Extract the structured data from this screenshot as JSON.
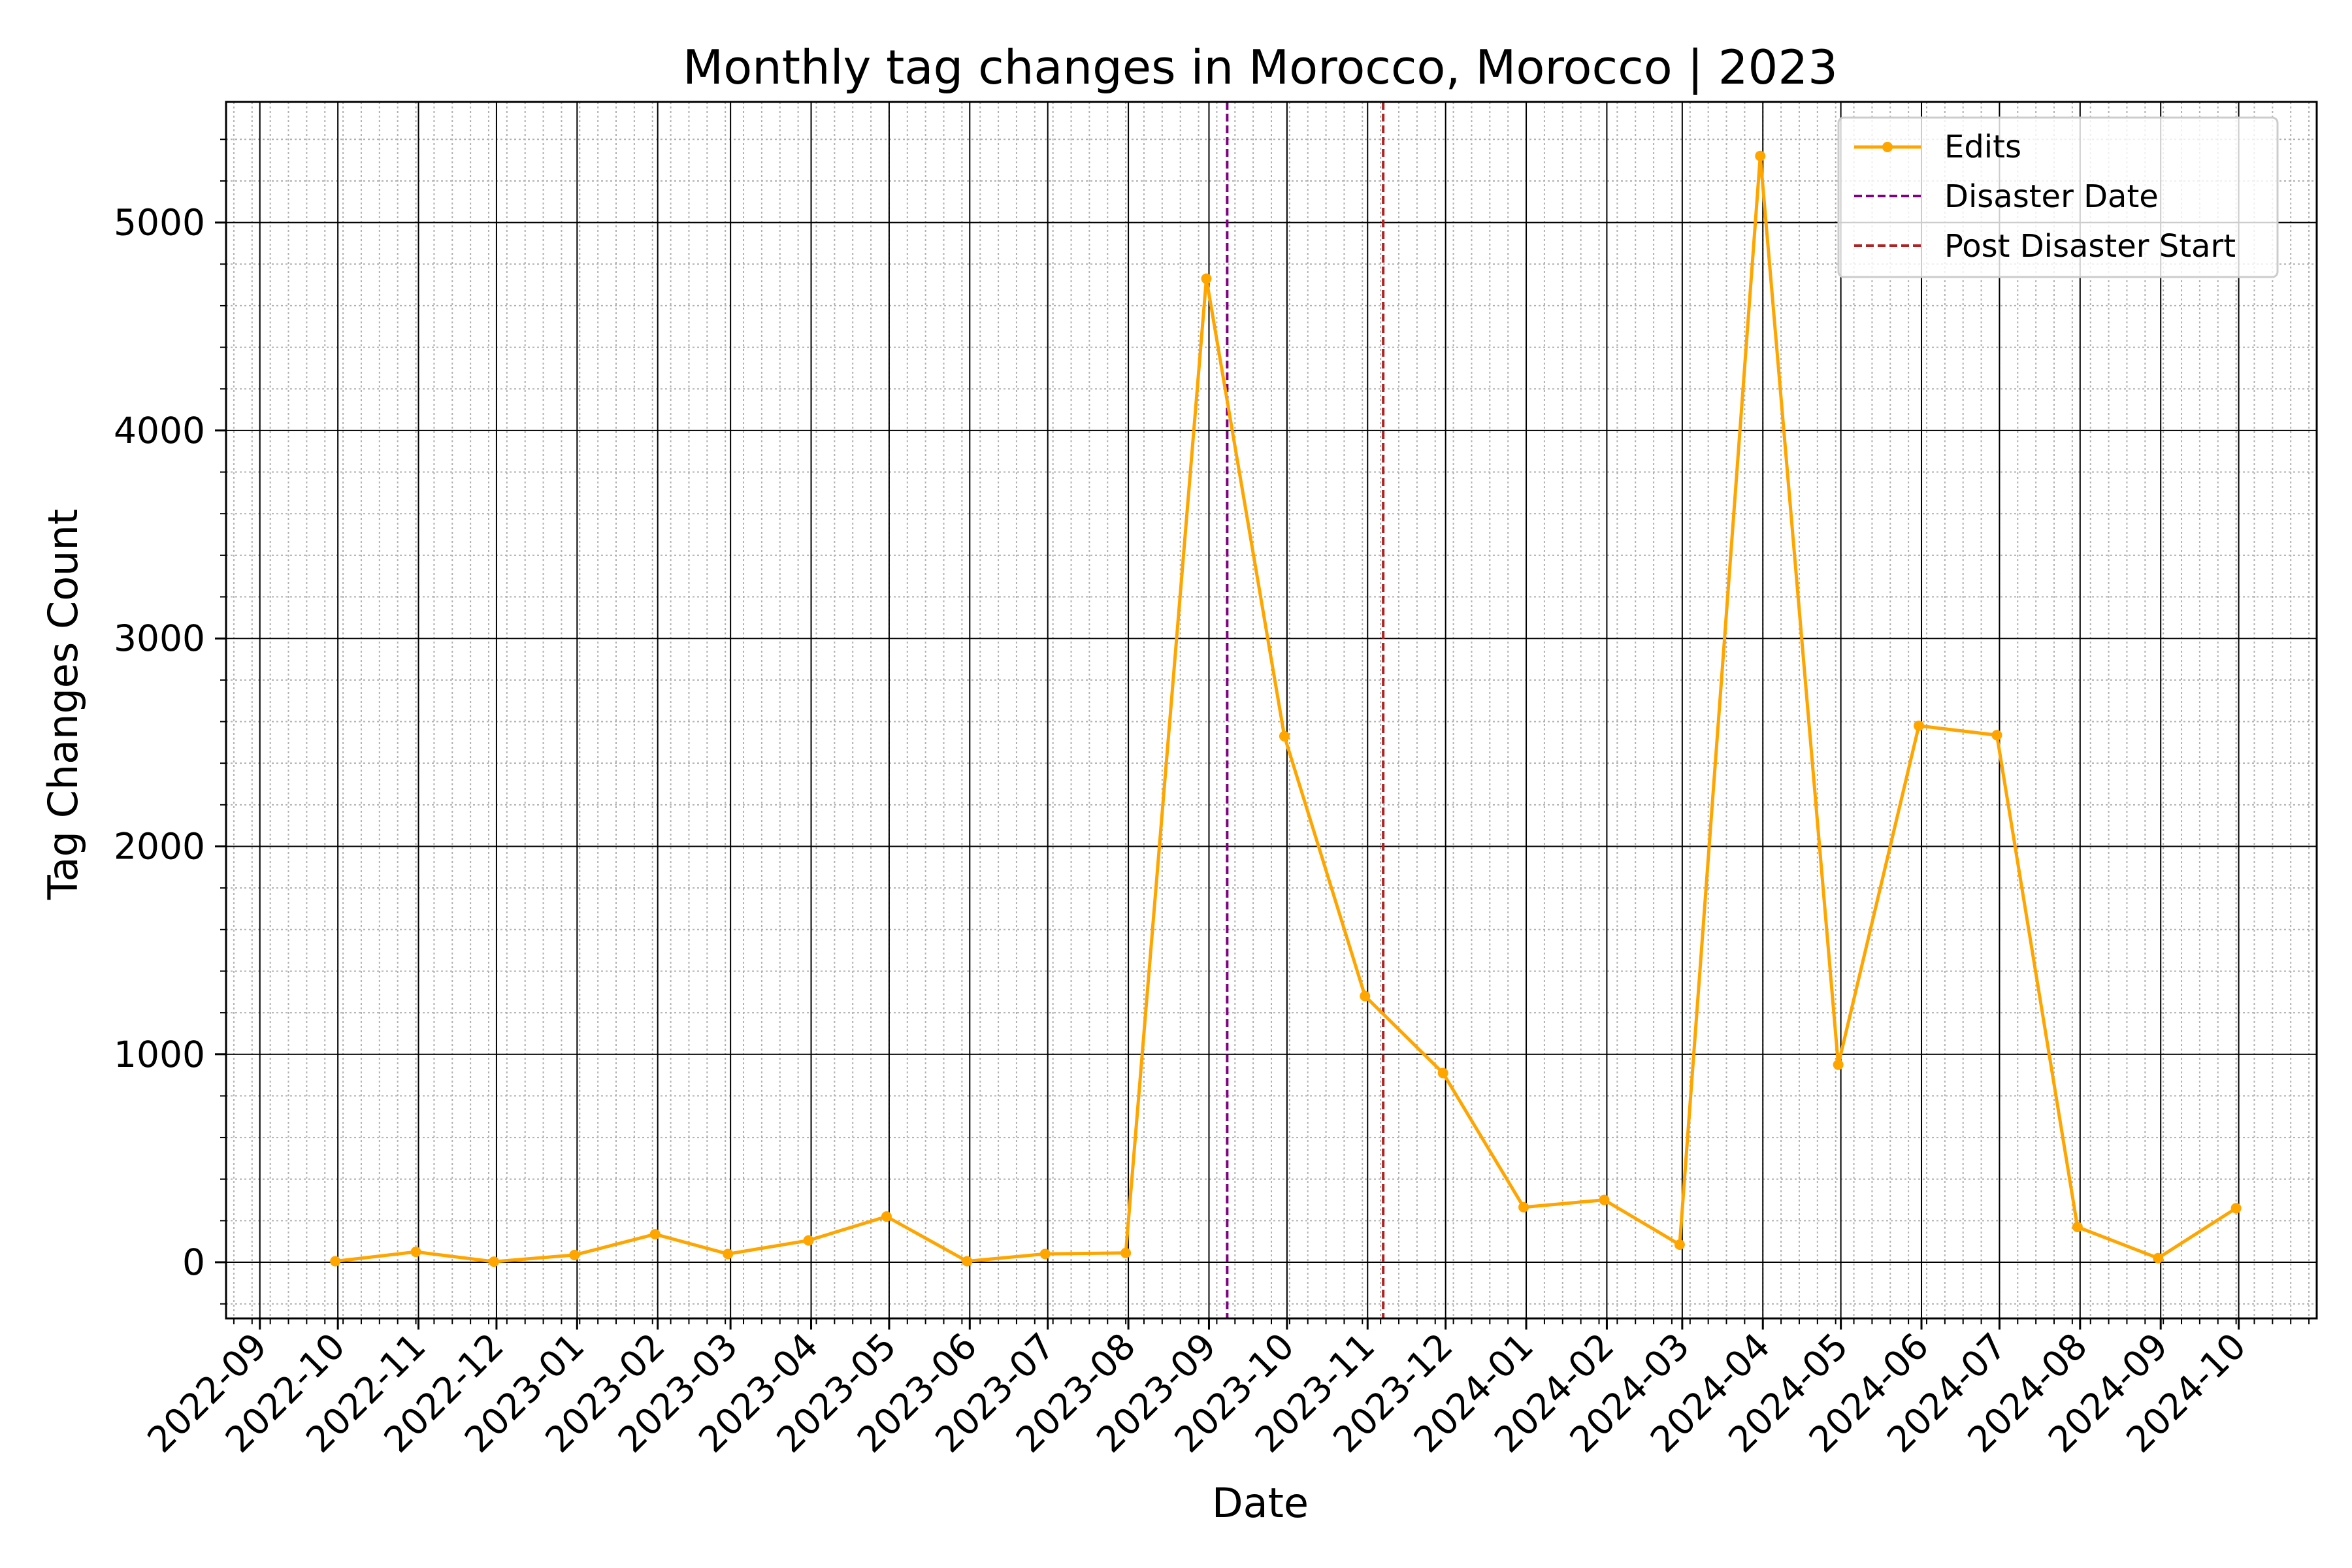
{
  "chart_data": {
    "type": "line",
    "title": "Monthly tag changes in Morocco, Morocco | 2023",
    "xlabel": "Date",
    "ylabel": "Tag Changes Count",
    "x_tick_labels": [
      "2022-09",
      "2022-10",
      "2022-11",
      "2022-12",
      "2023-01",
      "2023-02",
      "2023-03",
      "2023-04",
      "2023-05",
      "2023-06",
      "2023-07",
      "2023-08",
      "2023-09",
      "2023-10",
      "2023-11",
      "2023-12",
      "2024-01",
      "2024-02",
      "2024-03",
      "2024-04",
      "2024-05",
      "2024-06",
      "2024-07",
      "2024-08",
      "2024-09",
      "2024-10"
    ],
    "x_range": [
      "2022-08-19",
      "2024-10-31"
    ],
    "y_ticks": [
      0,
      1000,
      2000,
      3000,
      4000,
      5000
    ],
    "ylim": [
      -270,
      5580
    ],
    "grid": "major and minor",
    "legend_position": "upper right",
    "series": [
      {
        "name": "Edits",
        "color": "#ffa500",
        "x": [
          "2022-09-30",
          "2022-10-31",
          "2022-11-30",
          "2022-12-31",
          "2023-01-31",
          "2023-02-28",
          "2023-03-31",
          "2023-04-30",
          "2023-05-31",
          "2023-06-30",
          "2023-07-31",
          "2023-08-31",
          "2023-09-30",
          "2023-10-31",
          "2023-11-30",
          "2023-12-31",
          "2024-01-31",
          "2024-02-29",
          "2024-03-31",
          "2024-04-30",
          "2024-05-31",
          "2024-06-30",
          "2024-07-31",
          "2024-08-31",
          "2024-09-30"
        ],
        "values": [
          5,
          50,
          3,
          35,
          135,
          40,
          105,
          220,
          5,
          40,
          45,
          4730,
          2530,
          1280,
          910,
          265,
          300,
          85,
          5320,
          950,
          2580,
          2535,
          170,
          20,
          260
        ]
      }
    ],
    "vlines": [
      {
        "name": "Disaster Date",
        "date": "2023-09-08",
        "color": "#800080"
      },
      {
        "name": "Post Disaster Start",
        "date": "2023-11-07",
        "color": "#b22222"
      }
    ]
  }
}
